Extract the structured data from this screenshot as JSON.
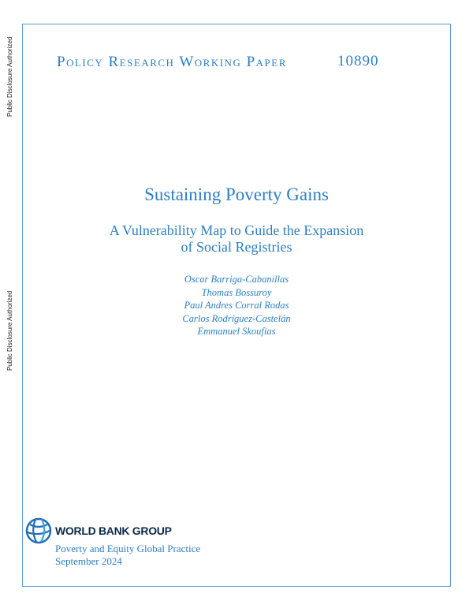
{
  "sidebar_notes": [
    "Public Disclosure Authorized",
    "Public Disclosure Authorized"
  ],
  "header": {
    "series": "Policy Research Working Paper",
    "number": "10890"
  },
  "title": "Sustaining Poverty Gains",
  "subtitle": [
    "A Vulnerability Map to Guide the Expansion",
    "of Social Registries"
  ],
  "authors": [
    "Oscar Barriga-Cabanillas",
    "Thomas Bossuroy",
    "Paul Andres Corral Rodas",
    "Carlos Rodríguez-Castelán",
    "Emmanuel Skoufias"
  ],
  "footer": {
    "logo_text": "WORLD BANK GROUP",
    "practice": "Poverty and Equity Global Practice",
    "date": "September 2024"
  },
  "colors": {
    "accent": "#2a7fc9",
    "frame": "#5b9bd5",
    "logo_dark": "#0a2a4a"
  }
}
